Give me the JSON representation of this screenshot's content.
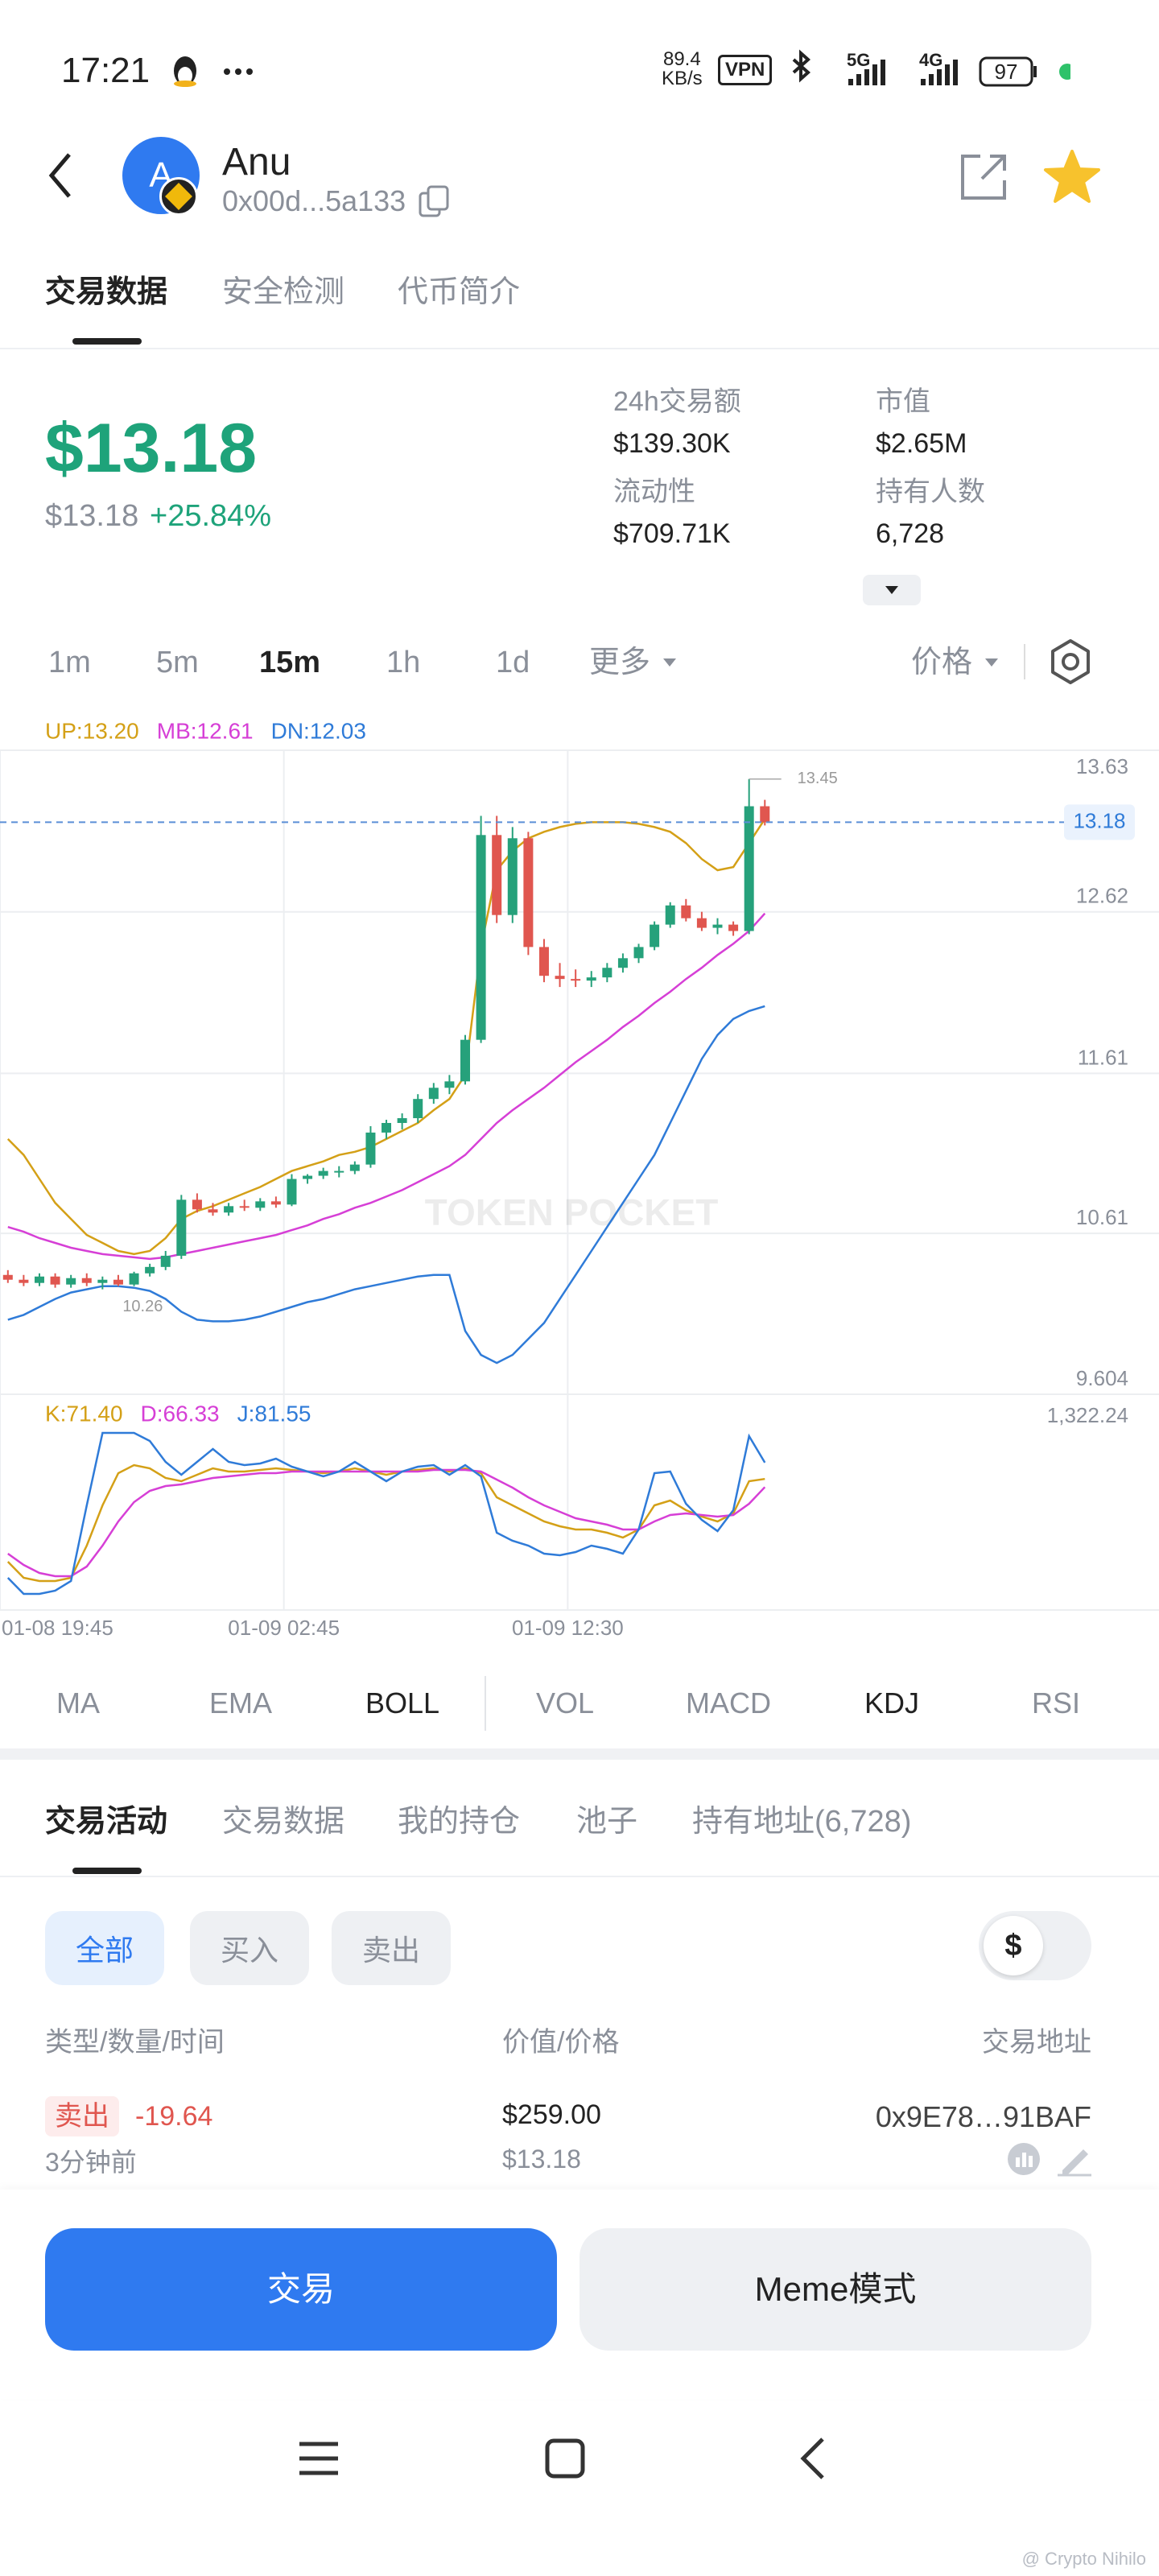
{
  "status_bar": {
    "time": "17:21",
    "net_speed": "89.4",
    "net_unit": "KB/s",
    "vpn": "VPN",
    "sig1": "5G",
    "sig2": "4G",
    "battery": "97"
  },
  "header": {
    "avatar": "A",
    "name": "Anu",
    "address": "0x00d...5a133"
  },
  "top_tabs": [
    "交易数据",
    "安全检测",
    "代币简介"
  ],
  "price": {
    "main": "$13.18",
    "sub": "$13.18",
    "change": "+25.84%"
  },
  "stats": [
    {
      "label": "24h交易额",
      "value": "$139.30K"
    },
    {
      "label": "市值",
      "value": "$2.65M"
    },
    {
      "label": "流动性",
      "value": "$709.71K"
    },
    {
      "label": "持有人数",
      "value": "6,728"
    }
  ],
  "intervals": [
    "1m",
    "5m",
    "15m",
    "1h",
    "1d",
    "更多"
  ],
  "price_mode": "价格",
  "chart_data": [
    {
      "type": "candlestick",
      "watermark": "TOKEN POCKET",
      "up_color": "#26a17b",
      "down_color": "#e0564f",
      "xlim": [
        -0.5,
        53.6
      ],
      "xticks": [
        {
          "value": -0.5,
          "label": "01-08 19:45"
        },
        {
          "value": 17.5,
          "label": "01-09 02:45"
        },
        {
          "value": 35.5,
          "label": "01-09 12:30"
        }
      ],
      "ylim": [
        9.604,
        13.63
      ],
      "yticks": [
        9.604,
        10.61,
        11.61,
        12.62,
        13.63
      ],
      "grid": true,
      "last_price": 13.18,
      "annotations": [
        13.45,
        10.26
      ],
      "open": [
        10.35,
        10.32,
        10.3,
        10.34,
        10.29,
        10.33,
        10.3,
        10.32,
        10.29,
        10.36,
        10.4,
        10.47,
        10.82,
        10.76,
        10.74,
        10.78,
        10.77,
        10.81,
        10.79,
        10.95,
        10.97,
        10.99,
        11.0,
        11.04,
        11.24,
        11.3,
        11.33,
        11.45,
        11.52,
        11.56,
        11.82,
        13.1,
        12.6,
        13.08,
        12.4,
        12.22,
        12.2,
        12.19,
        12.21,
        12.27,
        12.33,
        12.4,
        12.54,
        12.66,
        12.58,
        12.52,
        12.54,
        12.5,
        13.28
      ],
      "high": [
        10.38,
        10.35,
        10.36,
        10.36,
        10.35,
        10.36,
        10.34,
        10.35,
        10.37,
        10.42,
        10.5,
        10.85,
        10.86,
        10.8,
        10.8,
        10.82,
        10.83,
        10.84,
        10.98,
        10.98,
        11.02,
        11.03,
        11.06,
        11.28,
        11.32,
        11.36,
        11.48,
        11.55,
        11.6,
        11.85,
        13.22,
        13.22,
        13.15,
        13.12,
        12.45,
        12.3,
        12.26,
        12.25,
        12.3,
        12.36,
        12.42,
        12.56,
        12.68,
        12.7,
        12.62,
        12.58,
        12.56,
        13.45,
        13.32
      ],
      "low": [
        10.3,
        10.28,
        10.28,
        10.27,
        10.27,
        10.28,
        10.26,
        10.28,
        10.28,
        10.34,
        10.38,
        10.45,
        10.74,
        10.72,
        10.72,
        10.75,
        10.75,
        10.77,
        10.78,
        10.92,
        10.95,
        10.96,
        10.98,
        11.02,
        11.2,
        11.26,
        11.3,
        11.42,
        11.48,
        11.54,
        11.8,
        12.55,
        12.55,
        12.35,
        12.18,
        12.15,
        12.15,
        12.15,
        12.18,
        12.24,
        12.3,
        12.38,
        12.52,
        12.56,
        12.5,
        12.48,
        12.47,
        12.48,
        13.16
      ],
      "close": [
        10.32,
        10.3,
        10.34,
        10.29,
        10.33,
        10.3,
        10.32,
        10.29,
        10.36,
        10.4,
        10.47,
        10.82,
        10.76,
        10.74,
        10.78,
        10.77,
        10.81,
        10.79,
        10.95,
        10.97,
        11.0,
        11.0,
        11.04,
        11.24,
        11.3,
        11.33,
        11.45,
        11.52,
        11.56,
        11.82,
        13.1,
        12.6,
        13.08,
        12.4,
        12.22,
        12.2,
        12.19,
        12.21,
        12.27,
        12.33,
        12.4,
        12.54,
        12.66,
        12.58,
        12.52,
        12.54,
        12.5,
        13.28,
        13.18
      ],
      "series": [
        {
          "name": "UP:13.20",
          "color": "#d4a017",
          "values": [
            11.2,
            11.1,
            10.95,
            10.8,
            10.7,
            10.6,
            10.55,
            10.5,
            10.48,
            10.5,
            10.58,
            10.7,
            10.75,
            10.78,
            10.82,
            10.86,
            10.9,
            10.95,
            11.0,
            11.03,
            11.06,
            11.1,
            11.12,
            11.15,
            11.2,
            11.25,
            11.3,
            11.38,
            11.45,
            11.6,
            12.4,
            12.88,
            13.0,
            13.08,
            13.12,
            13.15,
            13.17,
            13.18,
            13.18,
            13.18,
            13.17,
            13.15,
            13.12,
            13.05,
            12.95,
            12.88,
            12.9,
            13.05,
            13.2
          ]
        },
        {
          "name": "MB:12.61",
          "color": "#d63fd6",
          "values": [
            10.65,
            10.62,
            10.58,
            10.55,
            10.52,
            10.5,
            10.48,
            10.47,
            10.46,
            10.45,
            10.46,
            10.48,
            10.5,
            10.52,
            10.54,
            10.56,
            10.58,
            10.6,
            10.63,
            10.66,
            10.7,
            10.73,
            10.77,
            10.8,
            10.84,
            10.88,
            10.93,
            10.98,
            11.03,
            11.1,
            11.2,
            11.3,
            11.38,
            11.45,
            11.52,
            11.6,
            11.68,
            11.75,
            11.82,
            11.9,
            11.97,
            12.05,
            12.12,
            12.2,
            12.27,
            12.35,
            12.42,
            12.5,
            12.61
          ]
        },
        {
          "name": "DN:12.03",
          "color": "#2f7bd8",
          "values": [
            10.07,
            10.1,
            10.15,
            10.2,
            10.24,
            10.26,
            10.28,
            10.28,
            10.27,
            10.25,
            10.2,
            10.12,
            10.07,
            10.06,
            10.06,
            10.07,
            10.09,
            10.12,
            10.15,
            10.18,
            10.2,
            10.23,
            10.26,
            10.28,
            10.3,
            10.32,
            10.34,
            10.35,
            10.35,
            10.0,
            9.85,
            9.8,
            9.85,
            9.95,
            10.05,
            10.2,
            10.35,
            10.5,
            10.65,
            10.8,
            10.95,
            11.1,
            11.3,
            11.5,
            11.7,
            11.85,
            11.95,
            12.0,
            12.03
          ]
        }
      ]
    },
    {
      "type": "line",
      "xlim": [
        -0.5,
        53.6
      ],
      "ylim": [
        0,
        100
      ],
      "annotations": [
        "1,322.24"
      ],
      "series": [
        {
          "name": "K:71.40",
          "color": "#d4a017",
          "values": [
            20,
            10,
            8,
            8,
            10,
            30,
            55,
            75,
            80,
            78,
            72,
            70,
            74,
            78,
            76,
            76,
            77,
            78,
            77,
            76,
            75,
            76,
            78,
            76,
            74,
            76,
            77,
            78,
            76,
            78,
            75,
            60,
            55,
            50,
            45,
            42,
            40,
            40,
            38,
            35,
            40,
            55,
            58,
            52,
            48,
            45,
            50,
            70,
            71.4
          ]
        },
        {
          "name": "D:66.33",
          "color": "#d63fd6",
          "values": [
            25,
            18,
            13,
            11,
            11,
            17,
            30,
            45,
            57,
            64,
            67,
            68,
            70,
            72,
            73,
            74,
            75,
            75,
            76,
            76,
            76,
            76,
            76,
            76,
            76,
            76,
            76,
            77,
            77,
            77,
            76,
            71,
            66,
            60,
            55,
            51,
            47,
            45,
            43,
            40,
            40,
            45,
            49,
            50,
            49,
            48,
            49,
            56,
            66.33
          ]
        },
        {
          "name": "J:81.55",
          "color": "#2f7bd8",
          "values": [
            10,
            0,
            0,
            2,
            8,
            55,
            100,
            100,
            100,
            95,
            82,
            74,
            82,
            90,
            82,
            80,
            81,
            84,
            79,
            76,
            73,
            76,
            82,
            76,
            70,
            76,
            79,
            80,
            74,
            80,
            73,
            38,
            33,
            30,
            25,
            24,
            26,
            30,
            28,
            25,
            40,
            75,
            76,
            56,
            46,
            39,
            52,
            98,
            81.55
          ]
        }
      ]
    }
  ],
  "indicators": [
    "MA",
    "EMA",
    "BOLL",
    "VOL",
    "MACD",
    "KDJ",
    "RSI"
  ],
  "activity_tabs": [
    "交易活动",
    "交易数据",
    "我的持仓",
    "池子",
    "持有地址(6,728)"
  ],
  "filters": [
    "全部",
    "买入",
    "卖出"
  ],
  "currency_toggle": "$",
  "columns": [
    "类型/数量/时间",
    "价值/价格",
    "交易地址"
  ],
  "trades": [
    {
      "side": "卖出",
      "amount": "-19.64",
      "time": "3分钟前",
      "value": "$259.00",
      "price": "$13.18",
      "address": "0x9E78…91BAF"
    }
  ],
  "buttons": [
    "交易",
    "Meme模式"
  ],
  "watermark": "@ Crypto Nihilo"
}
